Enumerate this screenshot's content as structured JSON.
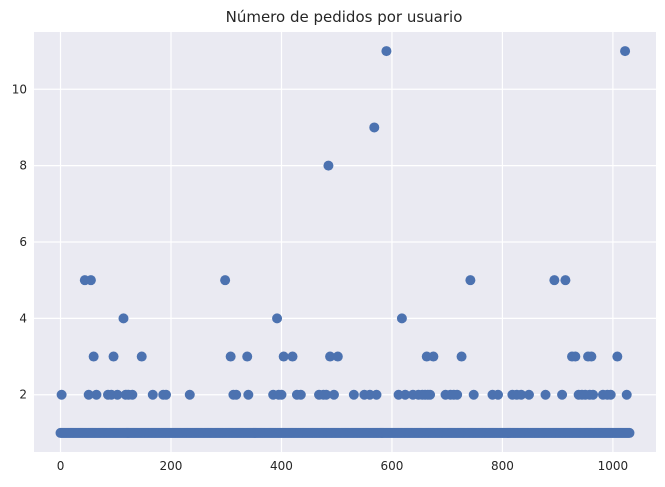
{
  "chart_data": {
    "type": "scatter",
    "title": "Número de pedidos por usuario",
    "xlabel": "",
    "ylabel": "",
    "xlim": [
      -48,
      1078
    ],
    "ylim": [
      0.5,
      11.5
    ],
    "xticks": [
      0,
      200,
      400,
      600,
      800,
      1000
    ],
    "yticks": [
      2,
      4,
      6,
      8,
      10
    ],
    "grid": true,
    "marker_color": "#4c72b0",
    "background_color": "#eaeaf2",
    "baseline": {
      "y": 1,
      "x_from": 0,
      "x_to": 1030,
      "step": 2
    },
    "points": [
      {
        "x": 2,
        "y": 2
      },
      {
        "x": 44,
        "y": 5
      },
      {
        "x": 51,
        "y": 2
      },
      {
        "x": 55,
        "y": 5
      },
      {
        "x": 60,
        "y": 3
      },
      {
        "x": 65,
        "y": 2
      },
      {
        "x": 86,
        "y": 2
      },
      {
        "x": 92,
        "y": 2
      },
      {
        "x": 96,
        "y": 3
      },
      {
        "x": 103,
        "y": 2
      },
      {
        "x": 114,
        "y": 4
      },
      {
        "x": 118,
        "y": 2
      },
      {
        "x": 123,
        "y": 2
      },
      {
        "x": 130,
        "y": 2
      },
      {
        "x": 147,
        "y": 3
      },
      {
        "x": 167,
        "y": 2
      },
      {
        "x": 186,
        "y": 2
      },
      {
        "x": 191,
        "y": 2
      },
      {
        "x": 234,
        "y": 2
      },
      {
        "x": 298,
        "y": 5
      },
      {
        "x": 308,
        "y": 3
      },
      {
        "x": 313,
        "y": 2
      },
      {
        "x": 318,
        "y": 2
      },
      {
        "x": 338,
        "y": 3
      },
      {
        "x": 340,
        "y": 2
      },
      {
        "x": 385,
        "y": 2
      },
      {
        "x": 392,
        "y": 4
      },
      {
        "x": 395,
        "y": 2
      },
      {
        "x": 400,
        "y": 2
      },
      {
        "x": 404,
        "y": 3
      },
      {
        "x": 420,
        "y": 3
      },
      {
        "x": 428,
        "y": 2
      },
      {
        "x": 435,
        "y": 2
      },
      {
        "x": 468,
        "y": 2
      },
      {
        "x": 476,
        "y": 2
      },
      {
        "x": 481,
        "y": 2
      },
      {
        "x": 485,
        "y": 8
      },
      {
        "x": 488,
        "y": 3
      },
      {
        "x": 495,
        "y": 2
      },
      {
        "x": 502,
        "y": 3
      },
      {
        "x": 531,
        "y": 2
      },
      {
        "x": 550,
        "y": 2
      },
      {
        "x": 560,
        "y": 2
      },
      {
        "x": 568,
        "y": 9
      },
      {
        "x": 572,
        "y": 2
      },
      {
        "x": 590,
        "y": 11
      },
      {
        "x": 612,
        "y": 2
      },
      {
        "x": 618,
        "y": 4
      },
      {
        "x": 624,
        "y": 2
      },
      {
        "x": 638,
        "y": 2
      },
      {
        "x": 648,
        "y": 2
      },
      {
        "x": 655,
        "y": 2
      },
      {
        "x": 660,
        "y": 2
      },
      {
        "x": 663,
        "y": 3
      },
      {
        "x": 665,
        "y": 2
      },
      {
        "x": 669,
        "y": 2
      },
      {
        "x": 675,
        "y": 3
      },
      {
        "x": 697,
        "y": 2
      },
      {
        "x": 706,
        "y": 2
      },
      {
        "x": 712,
        "y": 2
      },
      {
        "x": 718,
        "y": 2
      },
      {
        "x": 726,
        "y": 3
      },
      {
        "x": 742,
        "y": 5
      },
      {
        "x": 748,
        "y": 2
      },
      {
        "x": 782,
        "y": 2
      },
      {
        "x": 792,
        "y": 2
      },
      {
        "x": 818,
        "y": 2
      },
      {
        "x": 826,
        "y": 2
      },
      {
        "x": 834,
        "y": 2
      },
      {
        "x": 848,
        "y": 2
      },
      {
        "x": 878,
        "y": 2
      },
      {
        "x": 894,
        "y": 5
      },
      {
        "x": 908,
        "y": 2
      },
      {
        "x": 914,
        "y": 5
      },
      {
        "x": 926,
        "y": 3
      },
      {
        "x": 932,
        "y": 3
      },
      {
        "x": 938,
        "y": 2
      },
      {
        "x": 944,
        "y": 2
      },
      {
        "x": 950,
        "y": 2
      },
      {
        "x": 955,
        "y": 3
      },
      {
        "x": 958,
        "y": 2
      },
      {
        "x": 961,
        "y": 3
      },
      {
        "x": 964,
        "y": 2
      },
      {
        "x": 982,
        "y": 2
      },
      {
        "x": 990,
        "y": 2
      },
      {
        "x": 996,
        "y": 2
      },
      {
        "x": 1008,
        "y": 3
      },
      {
        "x": 1022,
        "y": 11
      },
      {
        "x": 1025,
        "y": 2
      }
    ]
  }
}
